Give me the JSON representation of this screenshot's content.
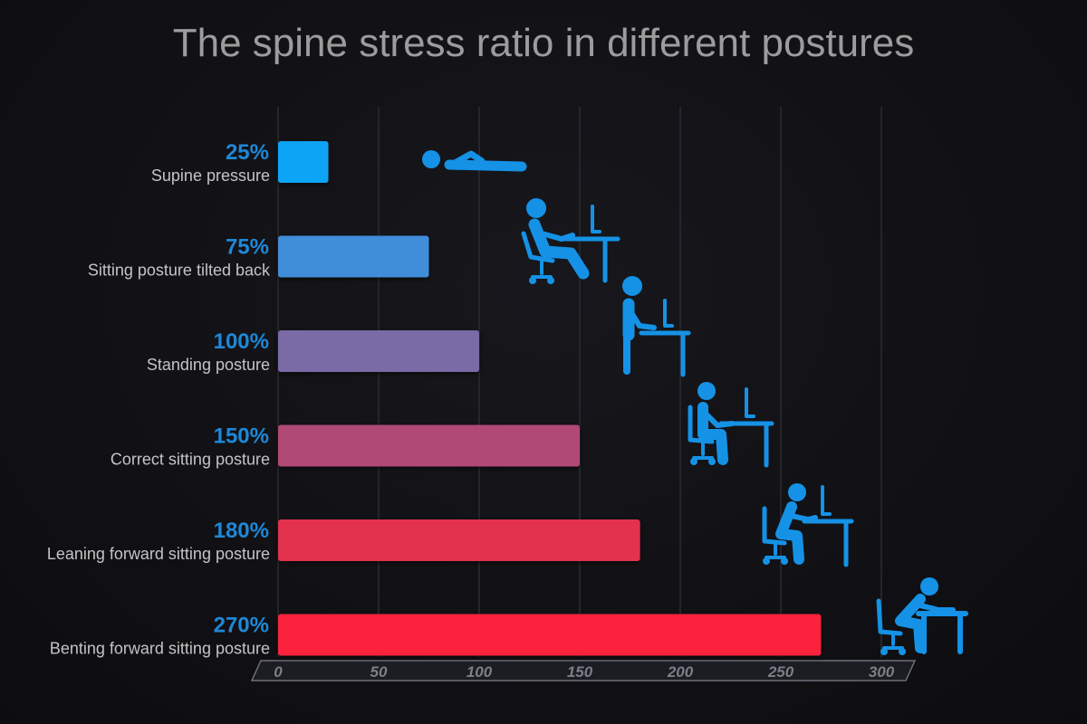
{
  "chart_data": {
    "type": "bar",
    "orientation": "horizontal",
    "title": "The spine stress ratio in different postures",
    "categories": [
      "Supine pressure",
      "Sitting posture tilted back",
      "Standing posture",
      "Correct sitting posture",
      "Leaning forward sitting posture",
      "Benting forward sitting posture"
    ],
    "values": [
      25,
      75,
      100,
      150,
      180,
      270
    ],
    "value_labels": [
      "25%",
      "75%",
      "100%",
      "150%",
      "180%",
      "270%"
    ],
    "xticks": [
      "0",
      "50",
      "100",
      "150",
      "200",
      "250",
      "300"
    ],
    "xlim": [
      0,
      300
    ],
    "xlabel": "",
    "ylabel": "",
    "grid": true,
    "legend": "none",
    "bar_colors": [
      "#10a4f6",
      "#3f8dd9",
      "#7a6aa6",
      "#b04a74",
      "#e2304e",
      "#fb203c"
    ],
    "icons": [
      "lying-person-icon",
      "reclined-sitting-at-desk-icon",
      "standing-at-desk-icon",
      "upright-sitting-at-desk-icon",
      "leaning-forward-at-desk-icon",
      "bending-forward-at-desk-icon"
    ]
  }
}
